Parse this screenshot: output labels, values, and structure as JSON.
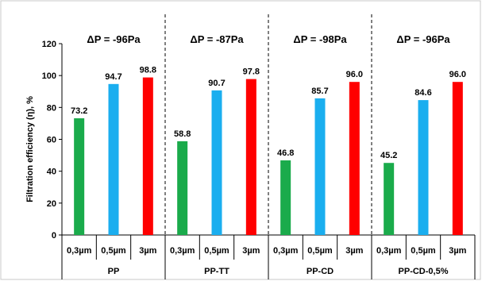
{
  "chart_data": {
    "type": "bar",
    "ylabel": "Filtration efficiency (η), %",
    "ylim": [
      0,
      120
    ],
    "yticks": [
      "0",
      "20",
      "40",
      "60",
      "80",
      "100",
      "120"
    ],
    "grid": false,
    "legend": "none",
    "groups": [
      {
        "name": "PP",
        "pressure": "ΔP = -96Pa",
        "categories": [
          "0,3µm",
          "0,5µm",
          "3µm"
        ],
        "values": [
          73.2,
          94.7,
          98.8
        ],
        "value_labels": [
          "73.2",
          "94.7",
          "98.8"
        ]
      },
      {
        "name": "PP-TT",
        "pressure": "ΔP = -87Pa",
        "categories": [
          "0,3µm",
          "0,5µm",
          "3µm"
        ],
        "values": [
          58.8,
          90.7,
          97.8
        ],
        "value_labels": [
          "58.8",
          "90.7",
          "97.8"
        ]
      },
      {
        "name": "PP-CD",
        "pressure": "ΔP = -98Pa",
        "categories": [
          "0,3µm",
          "0,5µm",
          "3µm"
        ],
        "values": [
          46.8,
          85.7,
          96.0
        ],
        "value_labels": [
          "46.8",
          "85.7",
          "96.0"
        ]
      },
      {
        "name": "PP-CD-0,5%",
        "pressure": "ΔP = -96Pa",
        "categories": [
          "0,3µm",
          "0,5µm",
          "3µm"
        ],
        "values": [
          45.2,
          84.6,
          96.0
        ],
        "value_labels": [
          "45.2",
          "84.6",
          "96.0"
        ]
      }
    ],
    "colors": [
      "#1aab4b",
      "#1aaeef",
      "#ff0000"
    ]
  }
}
